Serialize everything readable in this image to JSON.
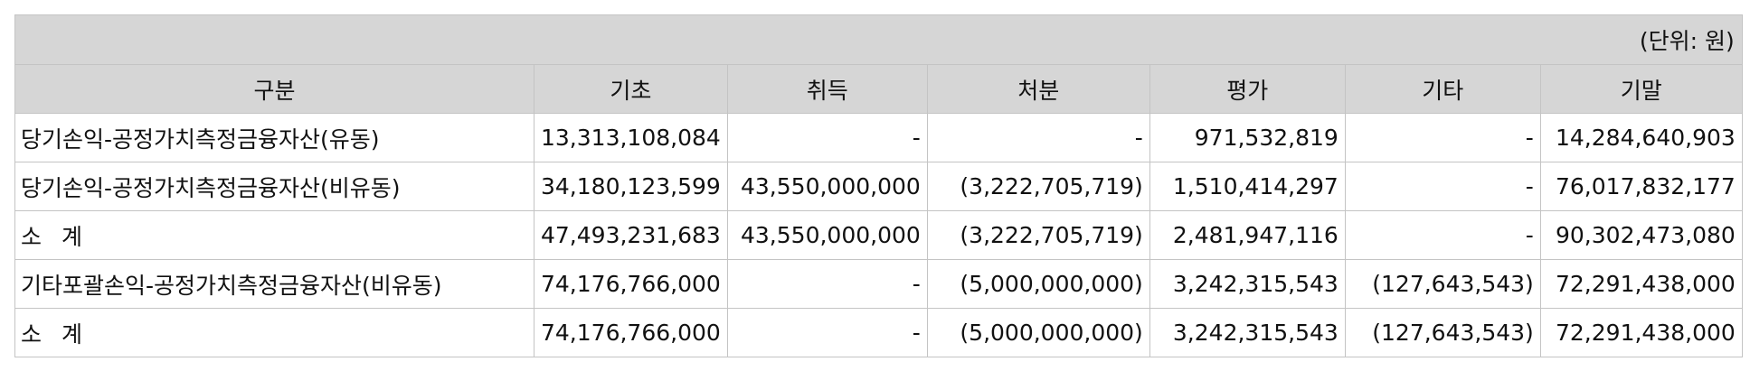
{
  "unit": "(단위: 원)",
  "headers": [
    "구분",
    "기초",
    "취득",
    "처분",
    "평가",
    "기타",
    "기말"
  ],
  "rows": [
    {
      "label": "당기손익-공정가치측정금융자산(유동)",
      "values": [
        "13,313,108,084",
        "-",
        "-",
        "971,532,819",
        "-",
        "14,284,640,903"
      ]
    },
    {
      "label": "당기손익-공정가치측정금융자산(비유동)",
      "values": [
        "34,180,123,599",
        "43,550,000,000",
        "(3,222,705,719)",
        "1,510,414,297",
        "-",
        "76,017,832,177"
      ]
    },
    {
      "label_a": "소",
      "label_b": "계",
      "values": [
        "47,493,231,683",
        "43,550,000,000",
        "(3,222,705,719)",
        "2,481,947,116",
        "-",
        "90,302,473,080"
      ]
    },
    {
      "label": "기타포괄손익-공정가치측정금융자산(비유동)",
      "values": [
        "74,176,766,000",
        "-",
        "(5,000,000,000)",
        "3,242,315,543",
        "(127,643,543)",
        "72,291,438,000"
      ]
    },
    {
      "label_a": "소",
      "label_b": "계",
      "values": [
        "74,176,766,000",
        "-",
        "(5,000,000,000)",
        "3,242,315,543",
        "(127,643,543)",
        "72,291,438,000"
      ]
    }
  ]
}
